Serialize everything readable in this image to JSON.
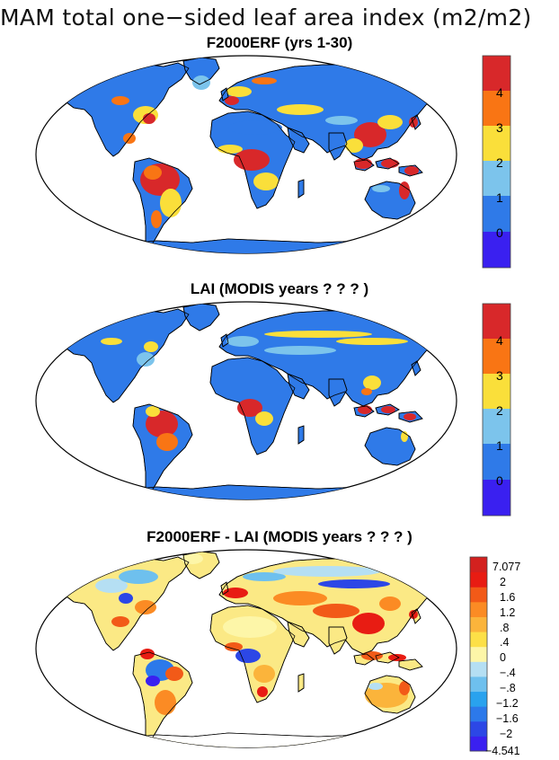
{
  "title": "MAM total one−sided leaf area index (m2/m2)",
  "panels": [
    {
      "title": "F2000ERF (yrs 1-30)"
    },
    {
      "title": "LAI (MODIS years ? ? ? )"
    },
    {
      "title": "F2000ERF - LAI (MODIS years ? ? ? )"
    }
  ],
  "legend_abs": {
    "colors": [
      "#3a20f0",
      "#2f7ae8",
      "#7cc4ec",
      "#fadf3a",
      "#f97514",
      "#d8282a"
    ],
    "labels": [
      "0",
      "1",
      "2",
      "3",
      "4"
    ]
  },
  "legend_diff": {
    "colors": [
      "#3a20f0",
      "#2c47e6",
      "#2c79ea",
      "#29a2ee",
      "#6ec0ee",
      "#b5dff3",
      "#fdf6a8",
      "#fde047",
      "#fbb43b",
      "#fb8b24",
      "#f25a18",
      "#e81c13",
      "#d3211f"
    ],
    "labels": [
      "7.077",
      "2",
      "1.6",
      "1.2",
      ".8",
      ".4",
      "0",
      "−.4",
      "−.8",
      "−1.2",
      "−1.6",
      "−2",
      "−4.541"
    ]
  },
  "colors": {
    "ocean": "#ffffff",
    "land_base": "#2f7ae8",
    "coast": "#000000",
    "diff_base": "#fbe985"
  }
}
